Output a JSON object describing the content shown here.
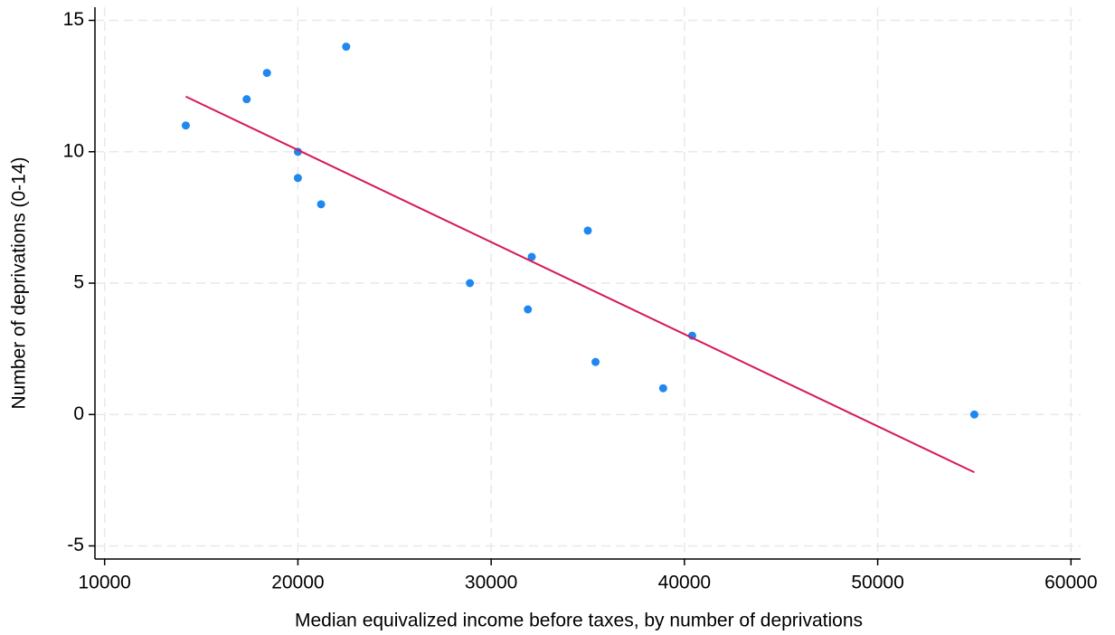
{
  "chart_data": {
    "type": "scatter",
    "x_label": "Median equivalized income before taxes, by number of deprivations",
    "y_label": "Number of deprivations (0-14)",
    "series": [
      {
        "type": "scatter",
        "color": "#1e88f0",
        "x": [
          14200,
          17350,
          18400,
          22500,
          20000,
          20000,
          21200,
          28900,
          32100,
          31900,
          35000,
          35400,
          38900,
          40400,
          55000
        ],
        "values": [
          11,
          12,
          13,
          14,
          10,
          9,
          8,
          5,
          6,
          4,
          7,
          2,
          1,
          3,
          0
        ]
      },
      {
        "type": "line",
        "color": "#d6195a",
        "x": [
          14200,
          55000
        ],
        "values": [
          12.1,
          -2.2
        ]
      }
    ],
    "xlim": [
      9500,
      60500
    ],
    "xticks": [
      10000,
      20000,
      30000,
      40000,
      50000,
      60000
    ],
    "ylim": [
      -5.5,
      15.5
    ],
    "yticks": [
      -5,
      0,
      5,
      10,
      15
    ],
    "grid": true
  }
}
